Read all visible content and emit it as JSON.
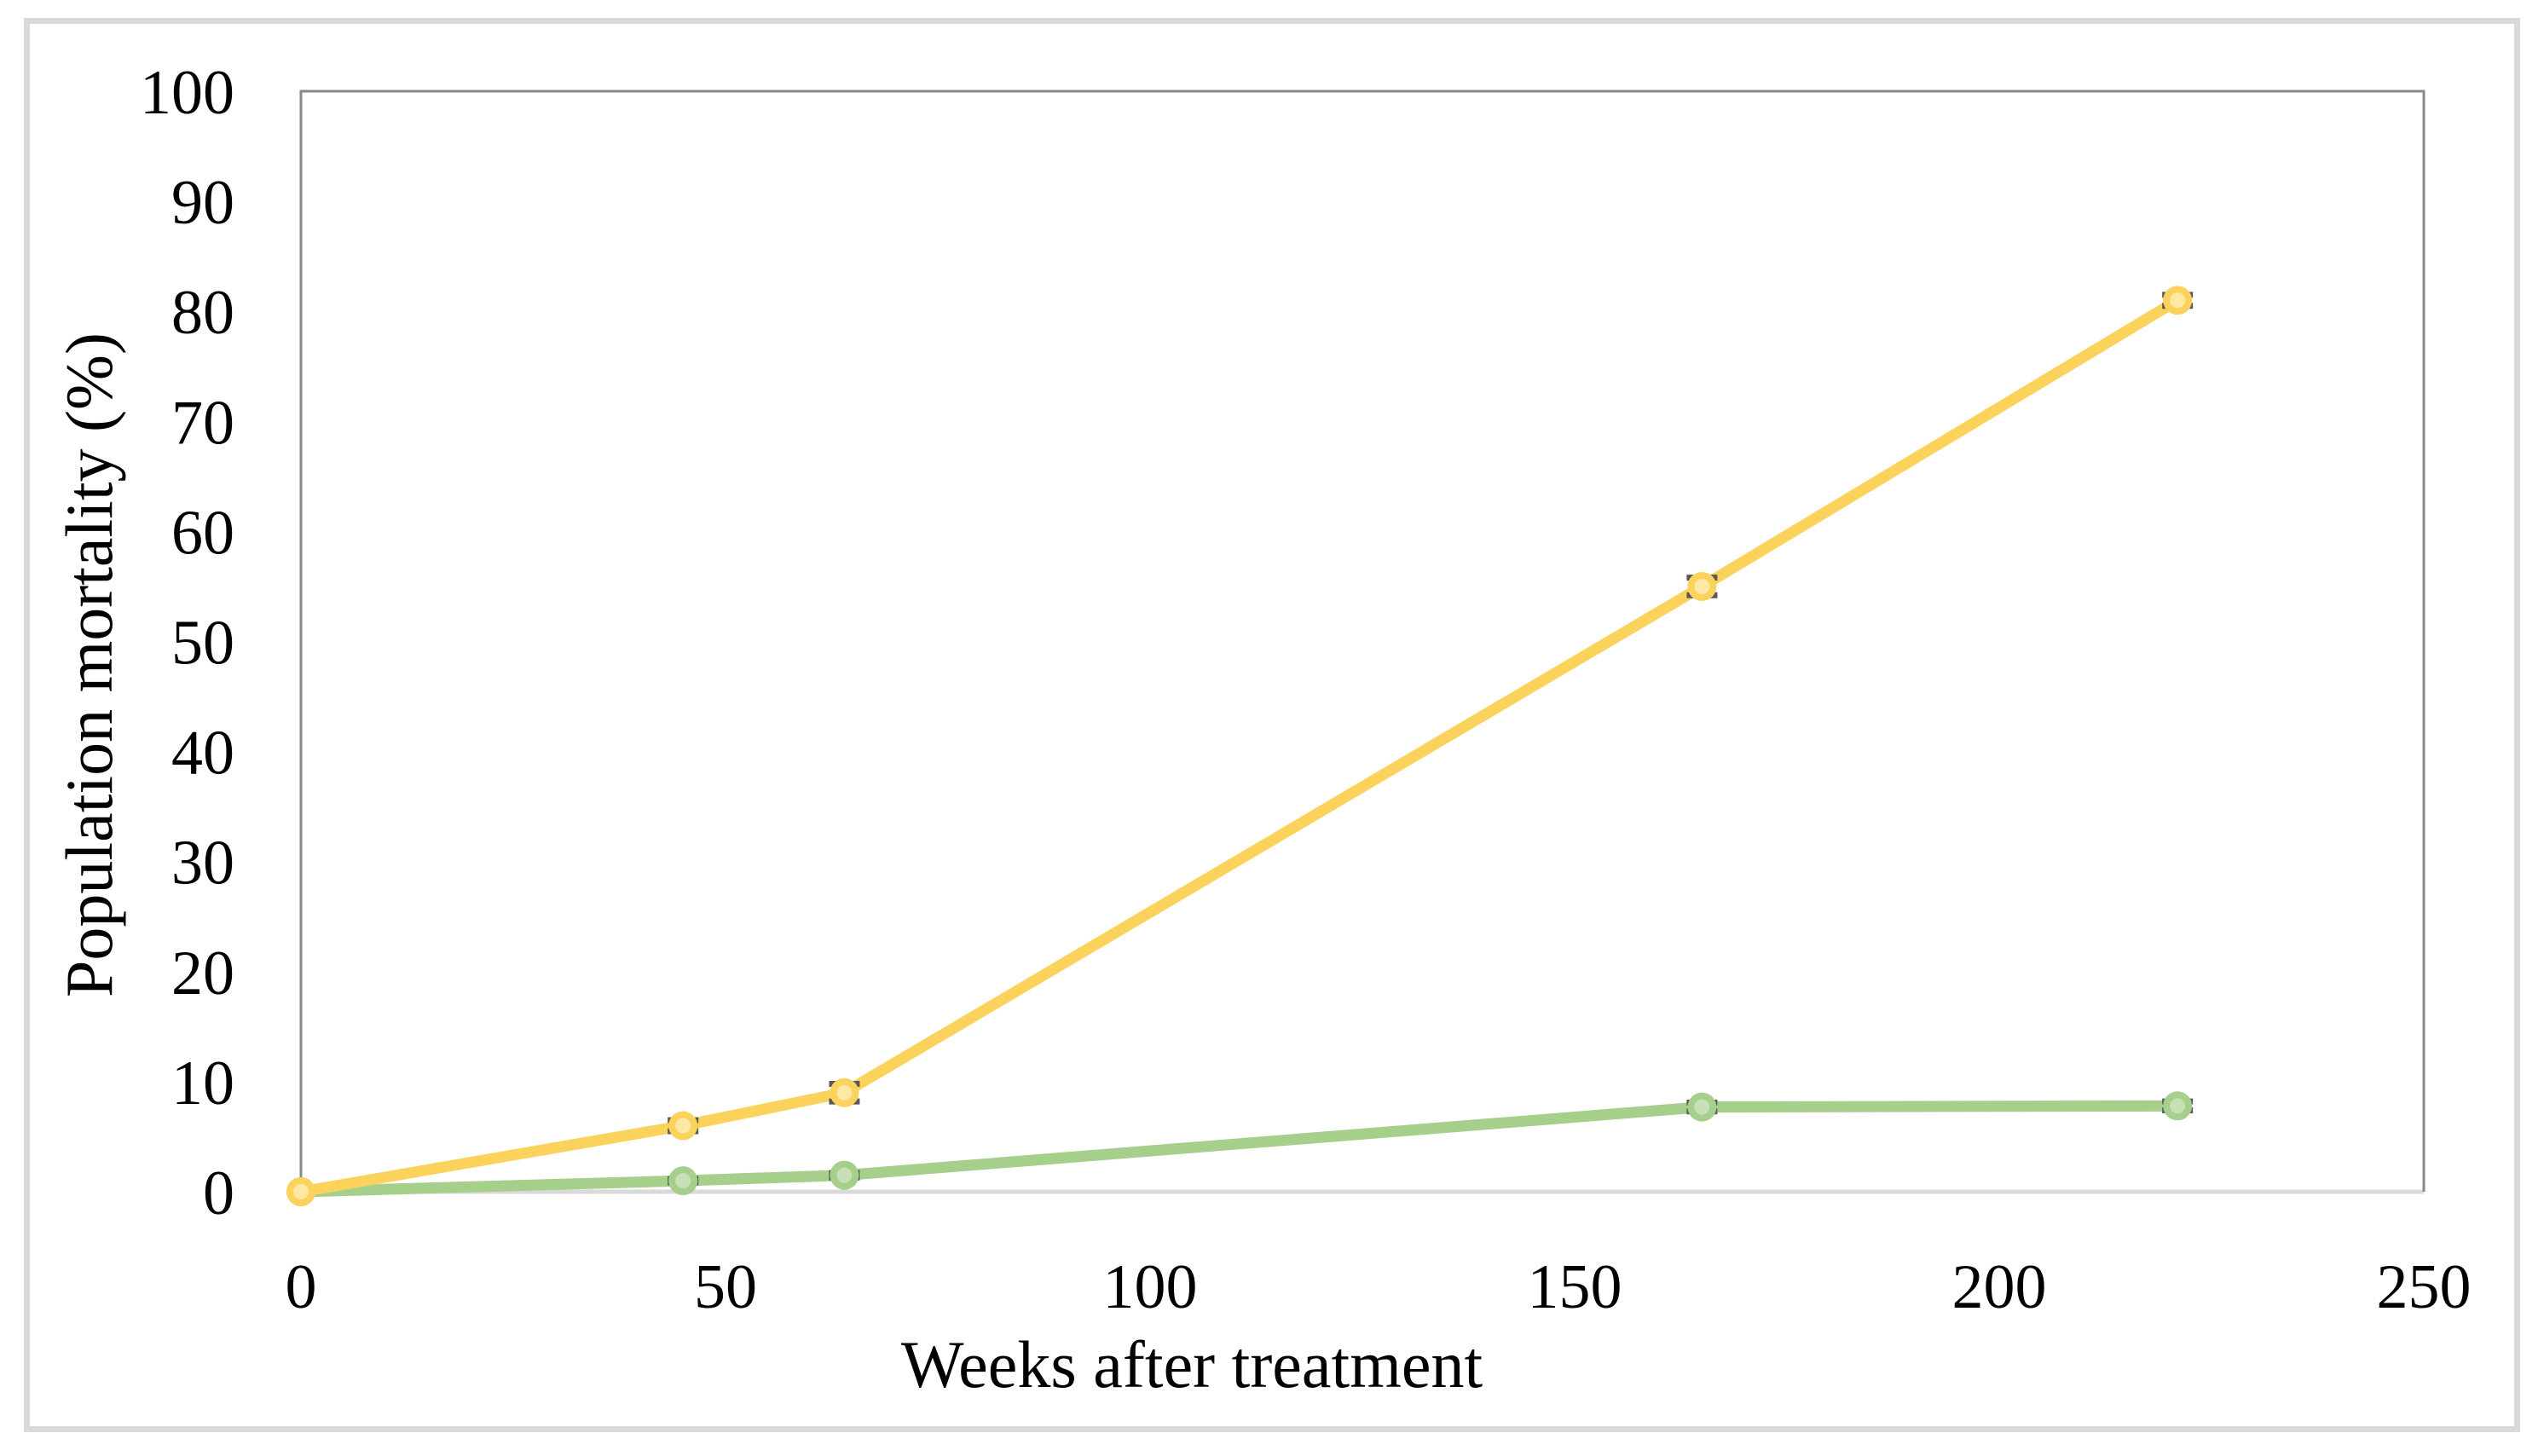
{
  "figure": {
    "background": "#FFFFFF",
    "border_color": "#D9D9D9"
  },
  "chart_data": {
    "type": "line",
    "title": "",
    "xlabel": "Weeks after treatment",
    "ylabel": "Population mortality (%)",
    "xlim": [
      0,
      250
    ],
    "ylim": [
      0,
      100
    ],
    "xticks": [
      0,
      50,
      100,
      150,
      200,
      250
    ],
    "yticks": [
      0,
      10,
      20,
      30,
      40,
      50,
      60,
      70,
      80,
      90,
      100
    ],
    "grid": false,
    "legend": "none",
    "error_bar_color": "#595959",
    "axis_line_color": "#898989",
    "x_axis_line_color": "#D9D9D9",
    "tick_label_color": "#000000",
    "series": [
      {
        "name": "yellow-series",
        "color": "#FBD35C",
        "marker_fill": "#FDE8A4",
        "x": [
          0,
          45,
          64,
          165,
          221
        ],
        "y": [
          0,
          6,
          9,
          55,
          81
        ],
        "yerr": [
          0,
          0.5,
          0.8,
          0.8,
          0.5
        ]
      },
      {
        "name": "green-series",
        "color": "#A6CF8C",
        "marker_fill": "#C7E1B5",
        "x": [
          0,
          45,
          64,
          165,
          221
        ],
        "y": [
          0,
          1,
          1.5,
          7.7,
          7.8
        ],
        "yerr": [
          0,
          0.15,
          0.2,
          0.4,
          0.4
        ]
      }
    ]
  }
}
